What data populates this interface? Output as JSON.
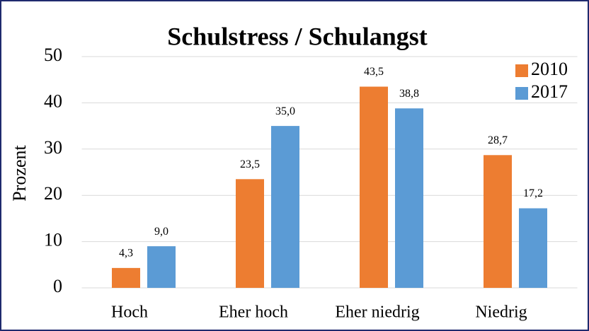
{
  "chart_data": {
    "type": "bar",
    "title": "Schulstress / Schulangst",
    "y_label": "Prozent",
    "categories": [
      "Hoch",
      "Eher hoch",
      "Eher niedrig",
      "Niedrig"
    ],
    "series": [
      {
        "name": "2010",
        "color": "#ed7d31",
        "values": [
          4.3,
          23.5,
          43.5,
          28.7
        ],
        "value_labels": [
          "4,3",
          "23,5",
          "43,5",
          "28,7"
        ]
      },
      {
        "name": "2017",
        "color": "#5b9bd5",
        "values": [
          9.0,
          35.0,
          38.8,
          17.2
        ],
        "value_labels": [
          "9,0",
          "35,0",
          "38,8",
          "17,2"
        ]
      }
    ],
    "ylim": [
      0,
      50
    ],
    "yticks": [
      0,
      10,
      20,
      30,
      40,
      50
    ],
    "grid": true,
    "legend": "top-right"
  }
}
